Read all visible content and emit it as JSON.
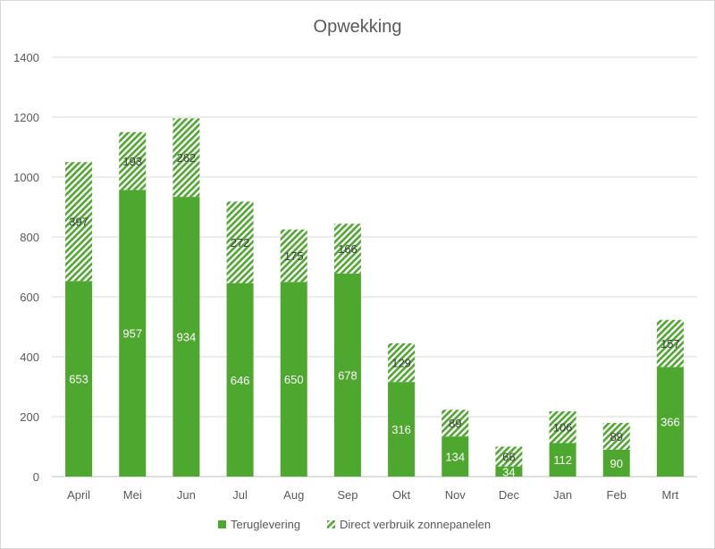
{
  "chart_data": {
    "type": "bar",
    "stacked": true,
    "title": "Opwekking",
    "xlabel": "",
    "ylabel": "",
    "ylim": [
      0,
      1400
    ],
    "yticks": [
      0,
      200,
      400,
      600,
      800,
      1000,
      1200,
      1400
    ],
    "grid": true,
    "legend_position": "bottom",
    "categories": [
      "April",
      "Mei",
      "Jun",
      "Jul",
      "Aug",
      "Sep",
      "Okt",
      "Nov",
      "Dec",
      "Jan",
      "Feb",
      "Mrt"
    ],
    "series": [
      {
        "name": "Teruglevering",
        "color": "#4ea72e",
        "pattern": "solid",
        "values": [
          653,
          957,
          934,
          646,
          650,
          678,
          316,
          134,
          34,
          112,
          90,
          366
        ]
      },
      {
        "name": "Direct verbruik zonnepanelen",
        "color": "#4ea72e",
        "pattern": "diagonal-hatch",
        "values": [
          397,
          193,
          262,
          272,
          175,
          166,
          129,
          89,
          66,
          106,
          89,
          157
        ]
      }
    ]
  }
}
